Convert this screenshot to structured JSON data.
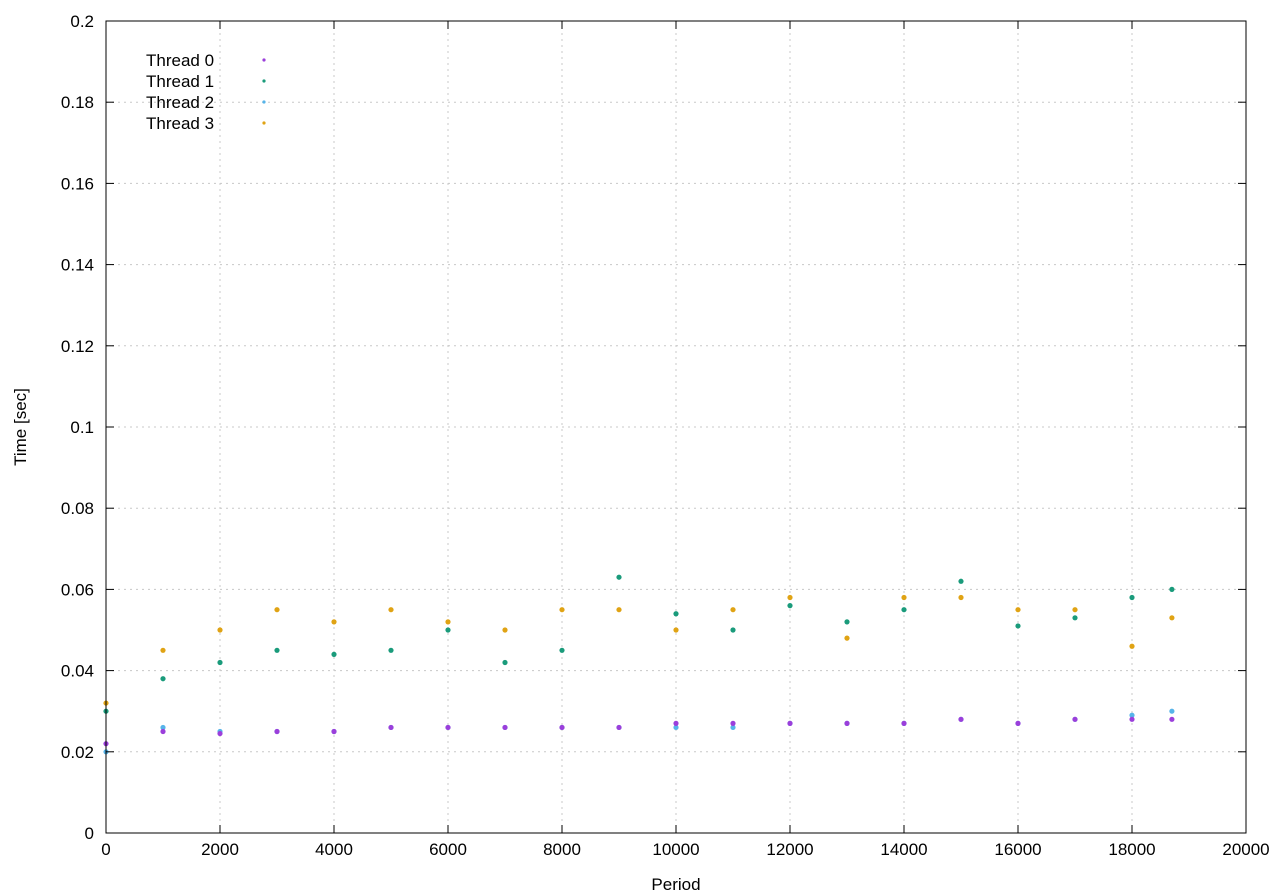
{
  "chart_data": {
    "type": "scatter",
    "xlabel": "Period",
    "ylabel": "Time [sec]",
    "xlim": [
      0,
      20000
    ],
    "ylim": [
      0,
      0.2
    ],
    "x_ticks": [
      "0",
      "2000",
      "4000",
      "6000",
      "8000",
      "10000",
      "12000",
      "14000",
      "16000",
      "18000",
      "20000"
    ],
    "y_ticks": [
      "0",
      "0.02",
      "0.04",
      "0.06",
      "0.08",
      "0.1",
      "0.12",
      "0.14",
      "0.16",
      "0.18",
      "0.2"
    ],
    "grid": true,
    "legend_position": "top-left",
    "series": [
      {
        "name": "Thread 0",
        "color": "#9b3fdb",
        "x": [
          0,
          1000,
          2000,
          3000,
          4000,
          5000,
          6000,
          7000,
          8000,
          9000,
          10000,
          11000,
          12000,
          13000,
          14000,
          15000,
          16000,
          17000,
          18000,
          18700
        ],
        "y": [
          0.022,
          0.025,
          0.0245,
          0.025,
          0.025,
          0.026,
          0.026,
          0.026,
          0.026,
          0.026,
          0.027,
          0.027,
          0.027,
          0.027,
          0.027,
          0.028,
          0.027,
          0.028,
          0.028,
          0.028
        ]
      },
      {
        "name": "Thread 1",
        "color": "#1a9b7b",
        "x": [
          0,
          1000,
          2000,
          3000,
          4000,
          5000,
          6000,
          7000,
          8000,
          9000,
          10000,
          11000,
          12000,
          13000,
          14000,
          15000,
          16000,
          17000,
          18000,
          18700
        ],
        "y": [
          0.03,
          0.038,
          0.042,
          0.045,
          0.044,
          0.045,
          0.05,
          0.042,
          0.045,
          0.063,
          0.054,
          0.05,
          0.056,
          0.052,
          0.055,
          0.062,
          0.051,
          0.053,
          0.058,
          0.06
        ]
      },
      {
        "name": "Thread 2",
        "color": "#56b4e9",
        "x": [
          0,
          1000,
          2000,
          3000,
          4000,
          5000,
          6000,
          7000,
          8000,
          9000,
          10000,
          11000,
          12000,
          13000,
          14000,
          15000,
          16000,
          17000,
          18000,
          18700
        ],
        "y": [
          0.02,
          0.026,
          0.025,
          0.025,
          0.025,
          0.026,
          0.026,
          0.026,
          0.026,
          0.026,
          0.026,
          0.026,
          0.027,
          0.027,
          0.027,
          0.028,
          0.027,
          0.028,
          0.029,
          0.03
        ]
      },
      {
        "name": "Thread 3",
        "color": "#e0a314",
        "x": [
          0,
          1000,
          2000,
          3000,
          4000,
          5000,
          6000,
          7000,
          8000,
          9000,
          10000,
          11000,
          12000,
          13000,
          14000,
          15000,
          16000,
          17000,
          18000,
          18700
        ],
        "y": [
          0.032,
          0.045,
          0.05,
          0.055,
          0.052,
          0.055,
          0.052,
          0.05,
          0.055,
          0.055,
          0.05,
          0.055,
          0.058,
          0.048,
          0.058,
          0.058,
          0.055,
          0.055,
          0.046,
          0.053
        ]
      }
    ]
  }
}
